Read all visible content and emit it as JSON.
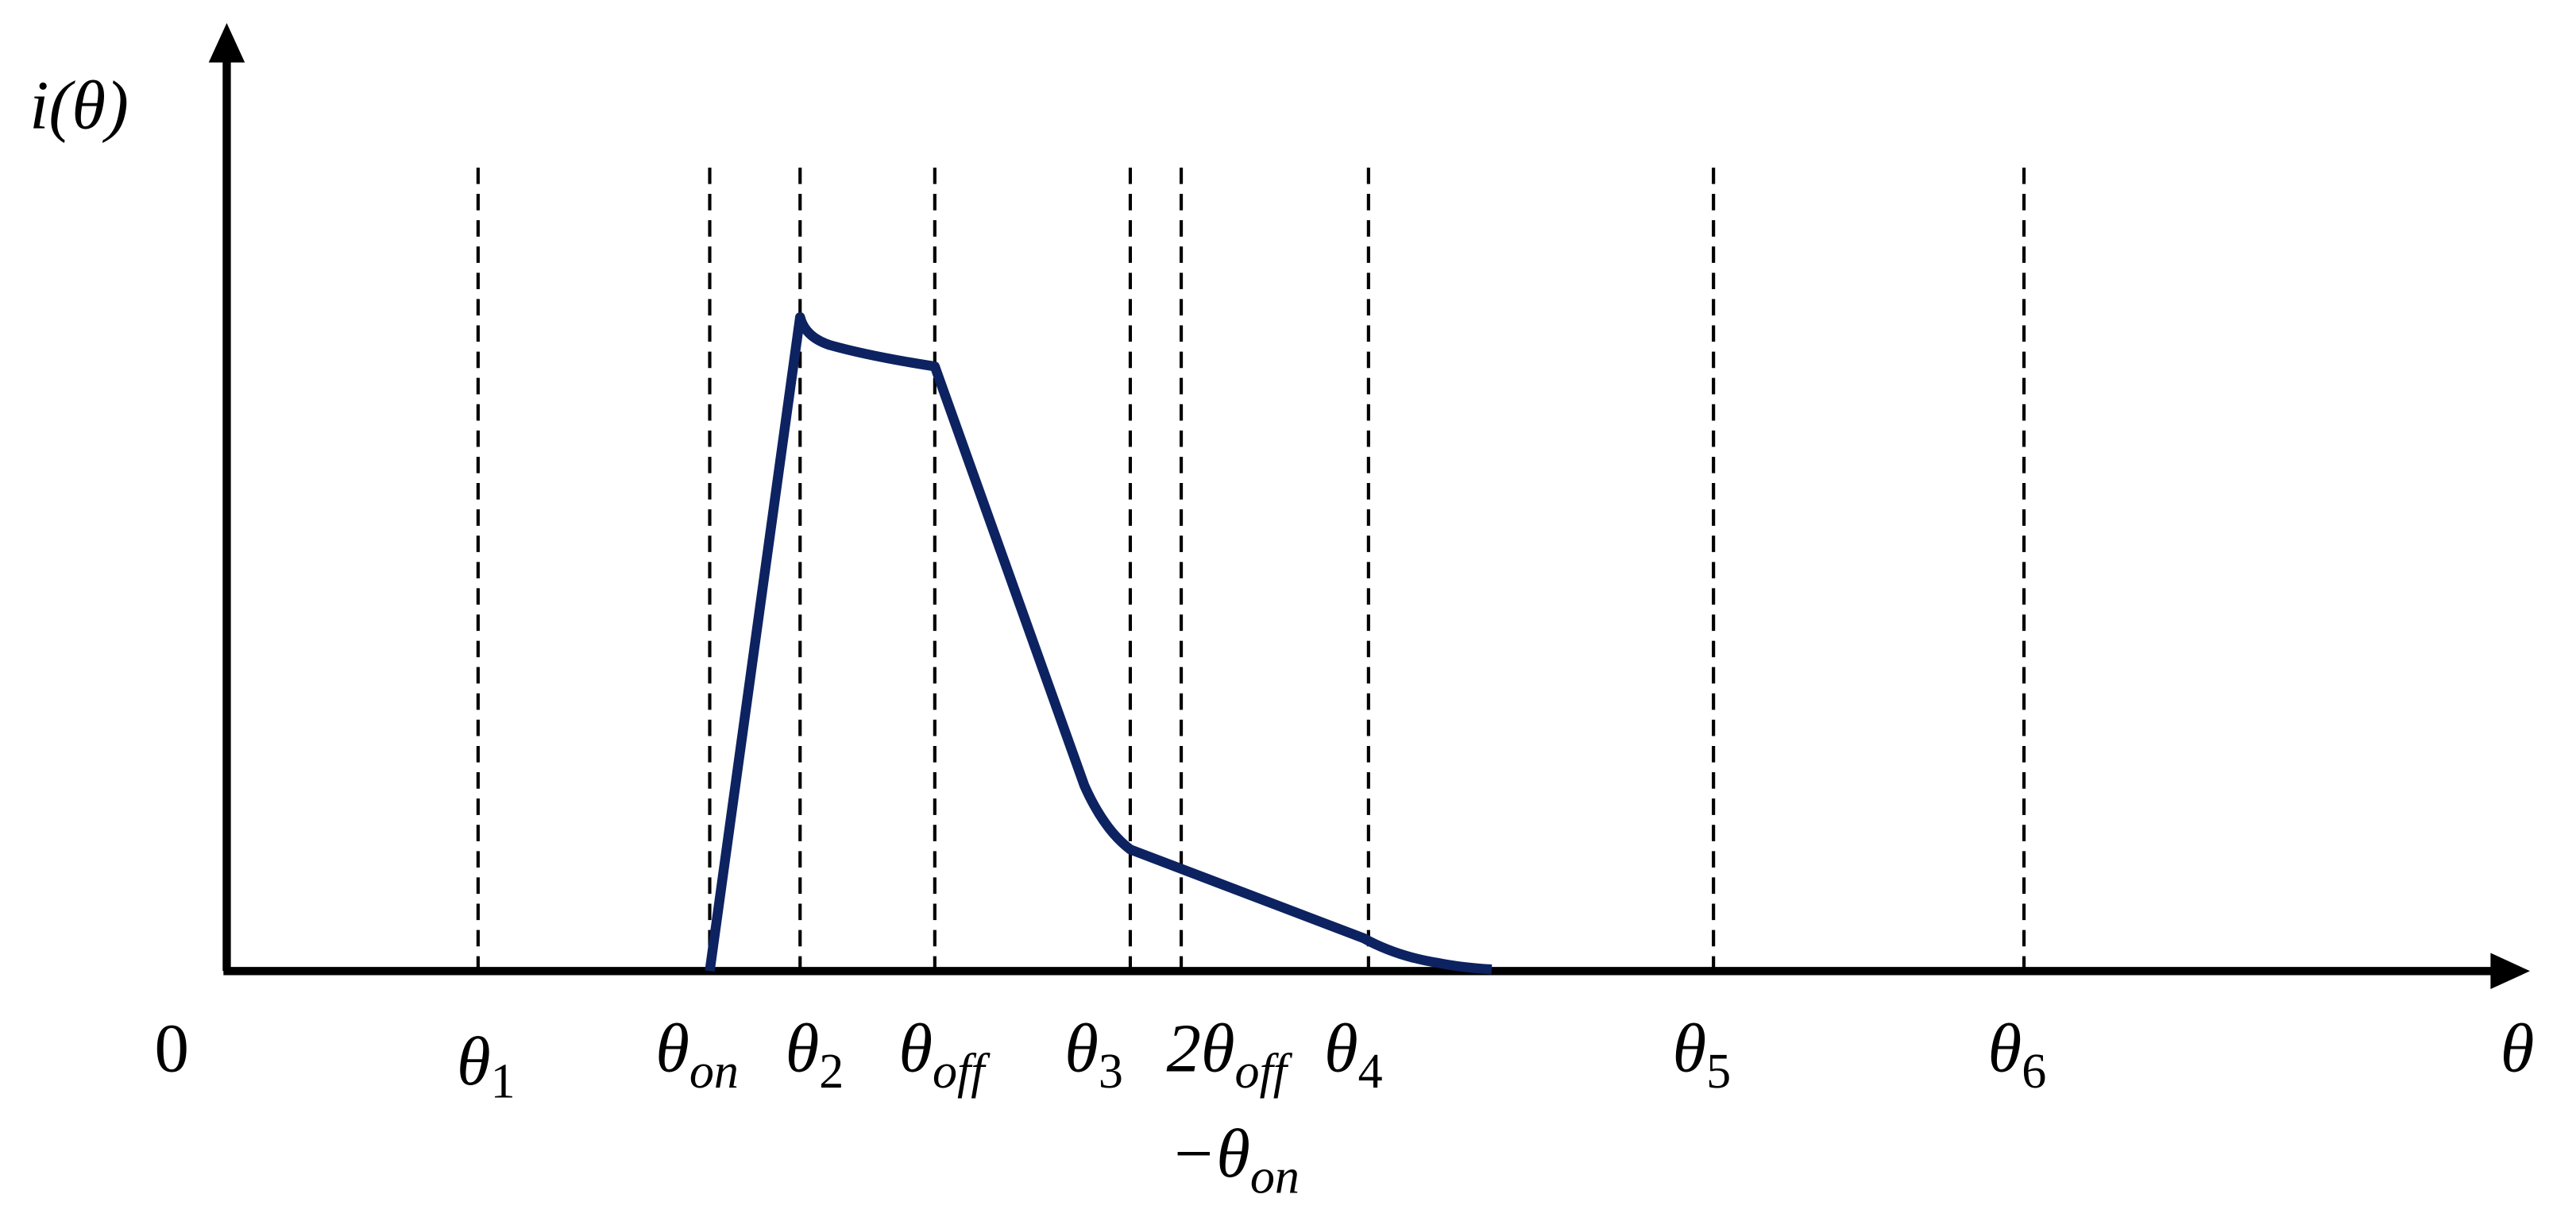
{
  "y_axis_label": "i(θ)",
  "x_axis_label": "θ",
  "origin_label": "0",
  "markers": [
    {
      "symbol": "θ",
      "subscript": "1"
    },
    {
      "symbol": "θ",
      "subscript": "on"
    },
    {
      "symbol": "θ",
      "subscript": "2"
    },
    {
      "symbol": "θ",
      "subscript": "off"
    },
    {
      "symbol": "θ",
      "subscript": "3"
    },
    {
      "symbol": "2θ",
      "subscript": "off",
      "line2_symbol": "−θ",
      "line2_subscript": "on"
    },
    {
      "symbol": "θ",
      "subscript": "4"
    },
    {
      "symbol": "θ",
      "subscript": "5"
    },
    {
      "symbol": "θ",
      "subscript": "6"
    }
  ]
}
